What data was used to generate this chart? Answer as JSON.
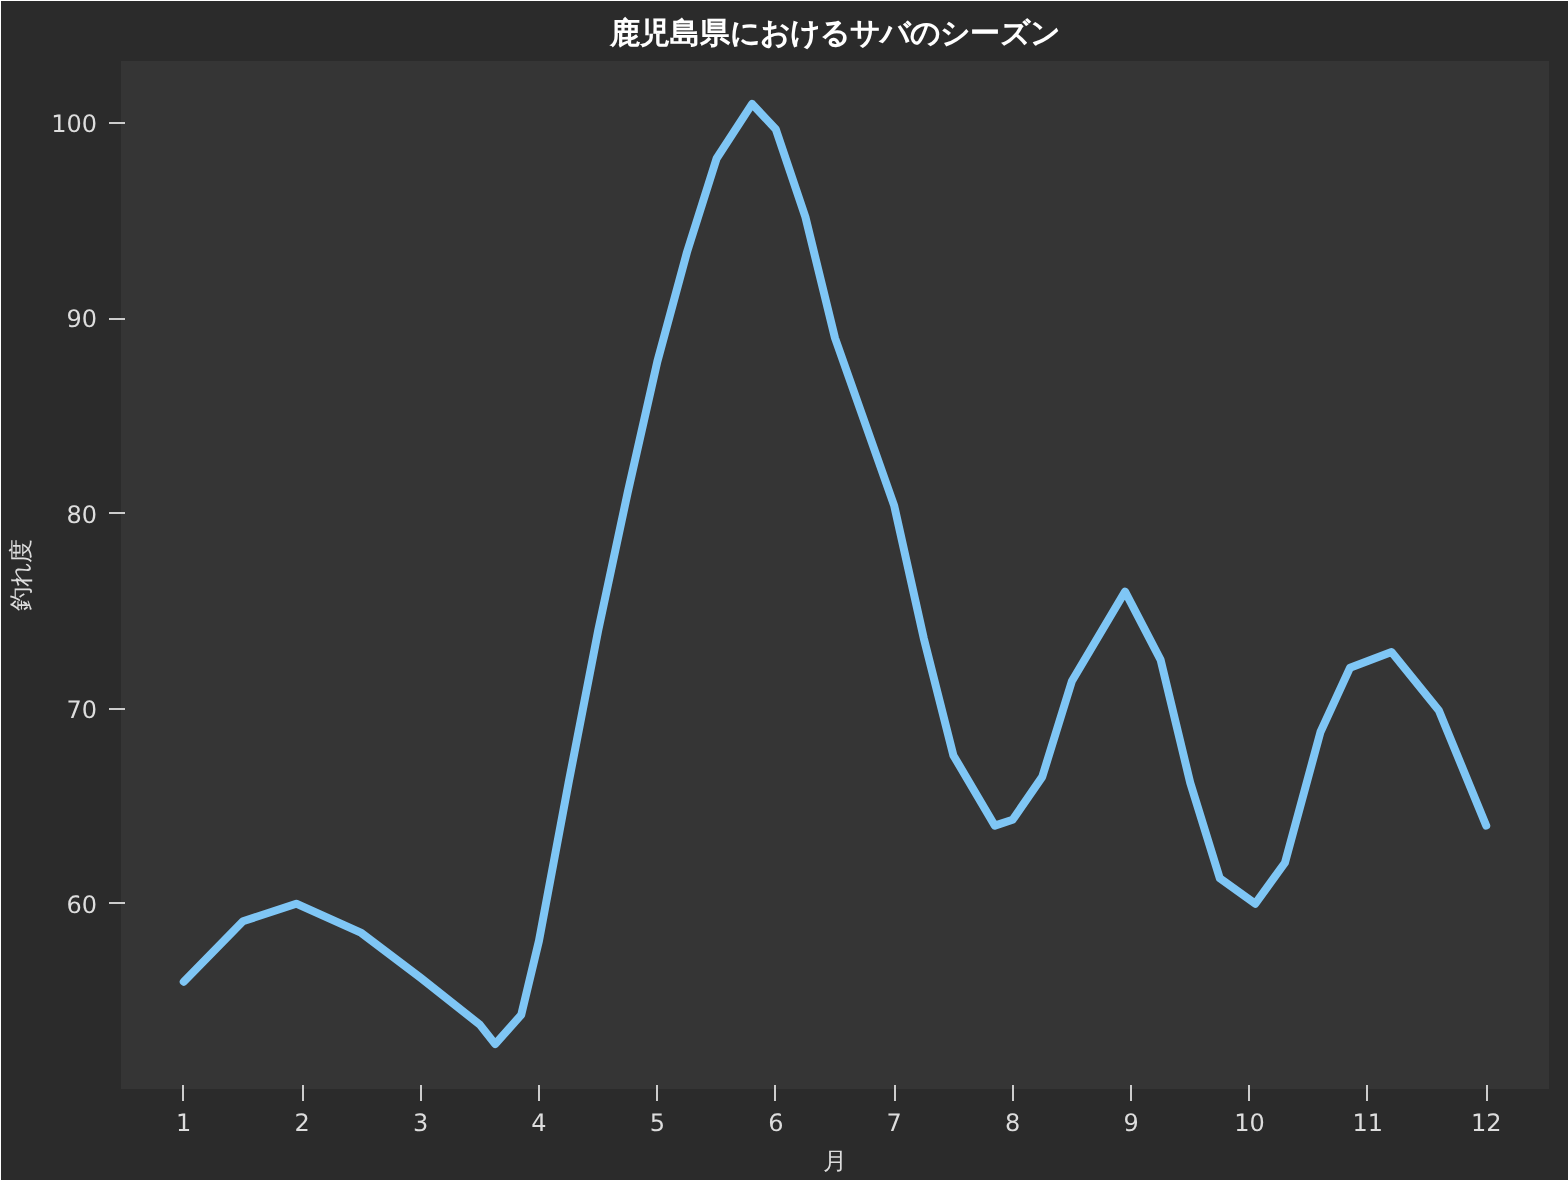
{
  "chart_data": {
    "type": "line",
    "title": "鹿児島県におけるサバのシーズン",
    "xlabel": "月",
    "ylabel": "釣れ度",
    "x": [
      1,
      1.5,
      1.95,
      2.5,
      3,
      3.5,
      3.63,
      3.85,
      4,
      4.25,
      4.5,
      4.75,
      5,
      5.25,
      5.5,
      5.8,
      6,
      6.25,
      6.5,
      7,
      7.25,
      7.5,
      7.85,
      8,
      8.25,
      8.5,
      8.95,
      9.25,
      9.5,
      9.75,
      10.05,
      10.3,
      10.6,
      10.85,
      11.2,
      11.6,
      12
    ],
    "series": [
      {
        "color": "#7fc6f5",
        "values": [
          56,
          59.1,
          60,
          58.5,
          56.2,
          53.8,
          52.8,
          54.3,
          58.1,
          66.2,
          74,
          81.1,
          87.8,
          93.4,
          98.2,
          101,
          99.7,
          95.2,
          89,
          80.4,
          73.6,
          67.6,
          64,
          64.3,
          66.5,
          71.4,
          76,
          72.5,
          66.2,
          61.3,
          60,
          62.1,
          68.8,
          72.1,
          72.9,
          69.9,
          64
        ]
      }
    ],
    "xlim": [
      0.47,
      12.53
    ],
    "ylim": [
      50.5,
      103.2
    ],
    "xticks": [
      1,
      2,
      3,
      4,
      5,
      6,
      7,
      8,
      9,
      10,
      11,
      12
    ],
    "yticks": [
      60,
      70,
      80,
      90,
      100
    ],
    "grid": false,
    "marker": "none",
    "line_style": "solid"
  }
}
